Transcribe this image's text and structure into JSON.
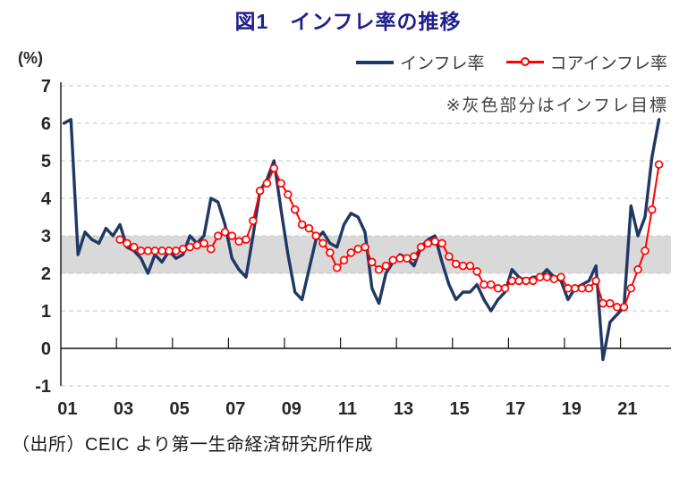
{
  "page": {
    "title": "図1　インフレ率の推移",
    "source_note": "（出所）CEIC より第一生命経済研究所作成",
    "colors": {
      "title": "#1f1f8e",
      "text": "#262626",
      "muted_text": "#404040",
      "negative_tick": "#ff0000",
      "axis": "#111111",
      "gridline": "#c9c9c9",
      "band": "#d9d9d9"
    }
  },
  "chart_data": {
    "type": "line",
    "title": "図1　インフレ率の推移",
    "unit_label": "(%)",
    "note": "※灰色部分はインフレ目標",
    "ylim": [
      -1,
      7
    ],
    "y_ticks": [
      7,
      6,
      5,
      4,
      3,
      2,
      1,
      0,
      -1
    ],
    "x_tick_labels": [
      "01",
      "03",
      "05",
      "07",
      "09",
      "11",
      "13",
      "15",
      "17",
      "19",
      "21"
    ],
    "period_start": "2001Q1",
    "period_end": "2022Q2",
    "frequency": "quarterly",
    "grid": "dashed-horizontal",
    "legend_position": "top-right",
    "target_band": {
      "from": 2,
      "to": 3,
      "color": "#d9d9d9",
      "meaning": "インフレ目標"
    },
    "series": [
      {
        "name": "インフレ率",
        "color": "#1f3864",
        "marker": "none",
        "start": "2001Q1",
        "values": [
          6.0,
          6.1,
          2.5,
          3.1,
          2.9,
          2.8,
          3.2,
          3.0,
          3.3,
          2.7,
          2.6,
          2.4,
          2.0,
          2.5,
          2.3,
          2.6,
          2.4,
          2.5,
          3.0,
          2.8,
          3.0,
          4.0,
          3.9,
          3.3,
          2.4,
          2.1,
          1.9,
          3.0,
          4.2,
          4.5,
          5.0,
          3.7,
          2.5,
          1.5,
          1.3,
          2.1,
          2.9,
          3.1,
          2.8,
          2.7,
          3.3,
          3.6,
          3.5,
          3.1,
          1.6,
          1.2,
          2.0,
          2.3,
          2.5,
          2.4,
          2.2,
          2.7,
          2.9,
          3.0,
          2.3,
          1.7,
          1.3,
          1.5,
          1.5,
          1.7,
          1.3,
          1.0,
          1.3,
          1.5,
          2.1,
          1.9,
          1.8,
          1.9,
          1.9,
          2.1,
          1.9,
          1.8,
          1.3,
          1.6,
          1.7,
          1.8,
          2.2,
          -0.3,
          0.7,
          0.9,
          1.1,
          3.8,
          3.0,
          3.5,
          5.1,
          6.1
        ]
      },
      {
        "name": "コアインフレ率",
        "color": "#ff0000",
        "marker": "open-circle",
        "start": "2003Q1",
        "values": [
          2.9,
          2.8,
          2.7,
          2.6,
          2.6,
          2.6,
          2.6,
          2.6,
          2.6,
          2.65,
          2.7,
          2.75,
          2.8,
          2.65,
          3.0,
          3.1,
          3.0,
          2.85,
          2.9,
          3.4,
          4.2,
          4.4,
          4.8,
          4.4,
          4.1,
          3.7,
          3.3,
          3.2,
          3.0,
          2.8,
          2.55,
          2.15,
          2.35,
          2.55,
          2.65,
          2.7,
          2.3,
          2.1,
          2.2,
          2.35,
          2.4,
          2.4,
          2.45,
          2.7,
          2.8,
          2.85,
          2.8,
          2.45,
          2.25,
          2.2,
          2.2,
          2.05,
          1.7,
          1.7,
          1.6,
          1.6,
          1.8,
          1.8,
          1.8,
          1.8,
          1.9,
          1.9,
          1.85,
          1.9,
          1.6,
          1.6,
          1.6,
          1.6,
          1.8,
          1.2,
          1.2,
          1.1,
          1.1,
          1.6,
          2.1,
          2.6,
          3.7,
          4.9
        ]
      }
    ]
  }
}
